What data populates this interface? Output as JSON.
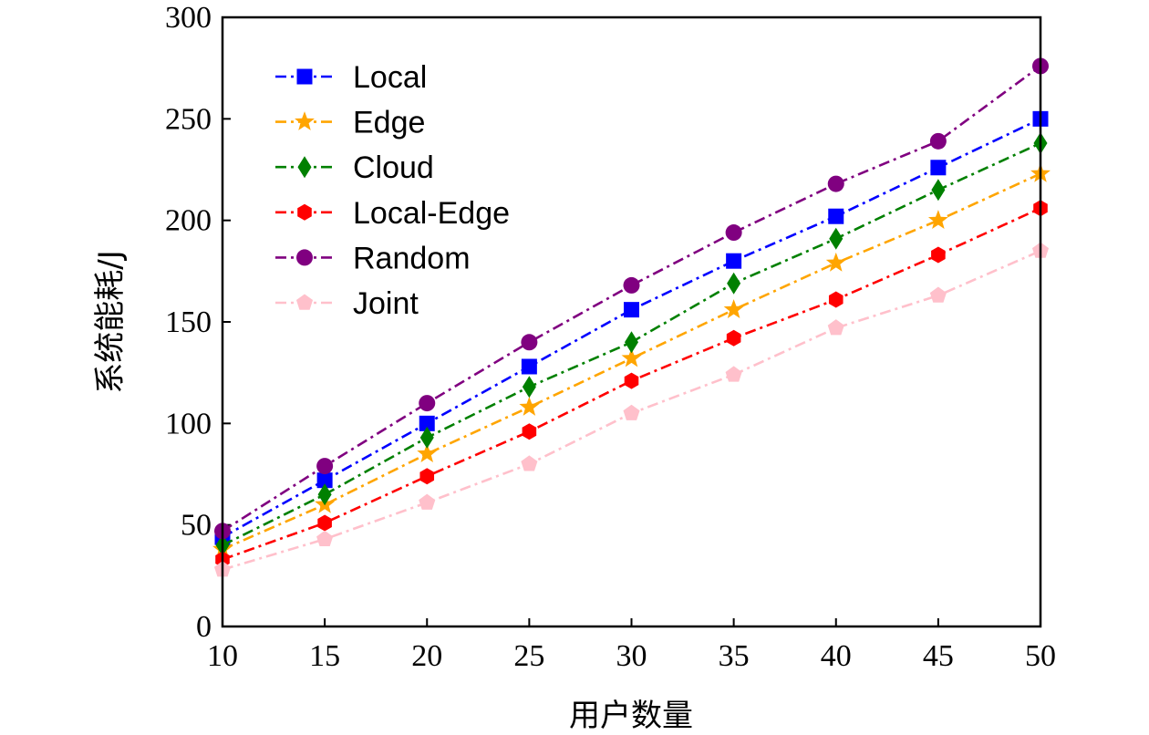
{
  "chart_data": {
    "type": "line",
    "title": "",
    "xlabel": "用户数量",
    "ylabel": "系统能耗/J",
    "xlim": [
      10,
      50
    ],
    "ylim": [
      0,
      300
    ],
    "x": [
      10,
      15,
      20,
      25,
      30,
      35,
      40,
      45,
      50
    ],
    "xticks": [
      "10",
      "15",
      "20",
      "25",
      "30",
      "35",
      "40",
      "45",
      "50"
    ],
    "yticks": [
      "0",
      "50",
      "100",
      "150",
      "200",
      "250",
      "300"
    ],
    "legend_position": "top-left",
    "grid": false,
    "series": [
      {
        "name": "Local",
        "color": "#0000ff",
        "marker": "square",
        "values": [
          44,
          72,
          100,
          128,
          156,
          180,
          202,
          226,
          250
        ]
      },
      {
        "name": "Edge",
        "color": "#ffa500",
        "marker": "star",
        "values": [
          38,
          60,
          85,
          108,
          132,
          156,
          179,
          200,
          223
        ]
      },
      {
        "name": "Cloud",
        "color": "#008000",
        "marker": "diamond",
        "values": [
          40,
          65,
          93,
          118,
          140,
          169,
          191,
          215,
          238
        ]
      },
      {
        "name": "Local-Edge",
        "color": "#ff0000",
        "marker": "hexagon",
        "values": [
          33,
          51,
          74,
          96,
          121,
          142,
          161,
          183,
          206
        ]
      },
      {
        "name": "Random",
        "color": "#800080",
        "marker": "circle",
        "values": [
          47,
          79,
          110,
          140,
          168,
          194,
          218,
          239,
          276
        ]
      },
      {
        "name": "Joint",
        "color": "#ffc0cb",
        "marker": "pentagon",
        "values": [
          28,
          43,
          61,
          80,
          105,
          124,
          147,
          163,
          185
        ]
      }
    ]
  }
}
